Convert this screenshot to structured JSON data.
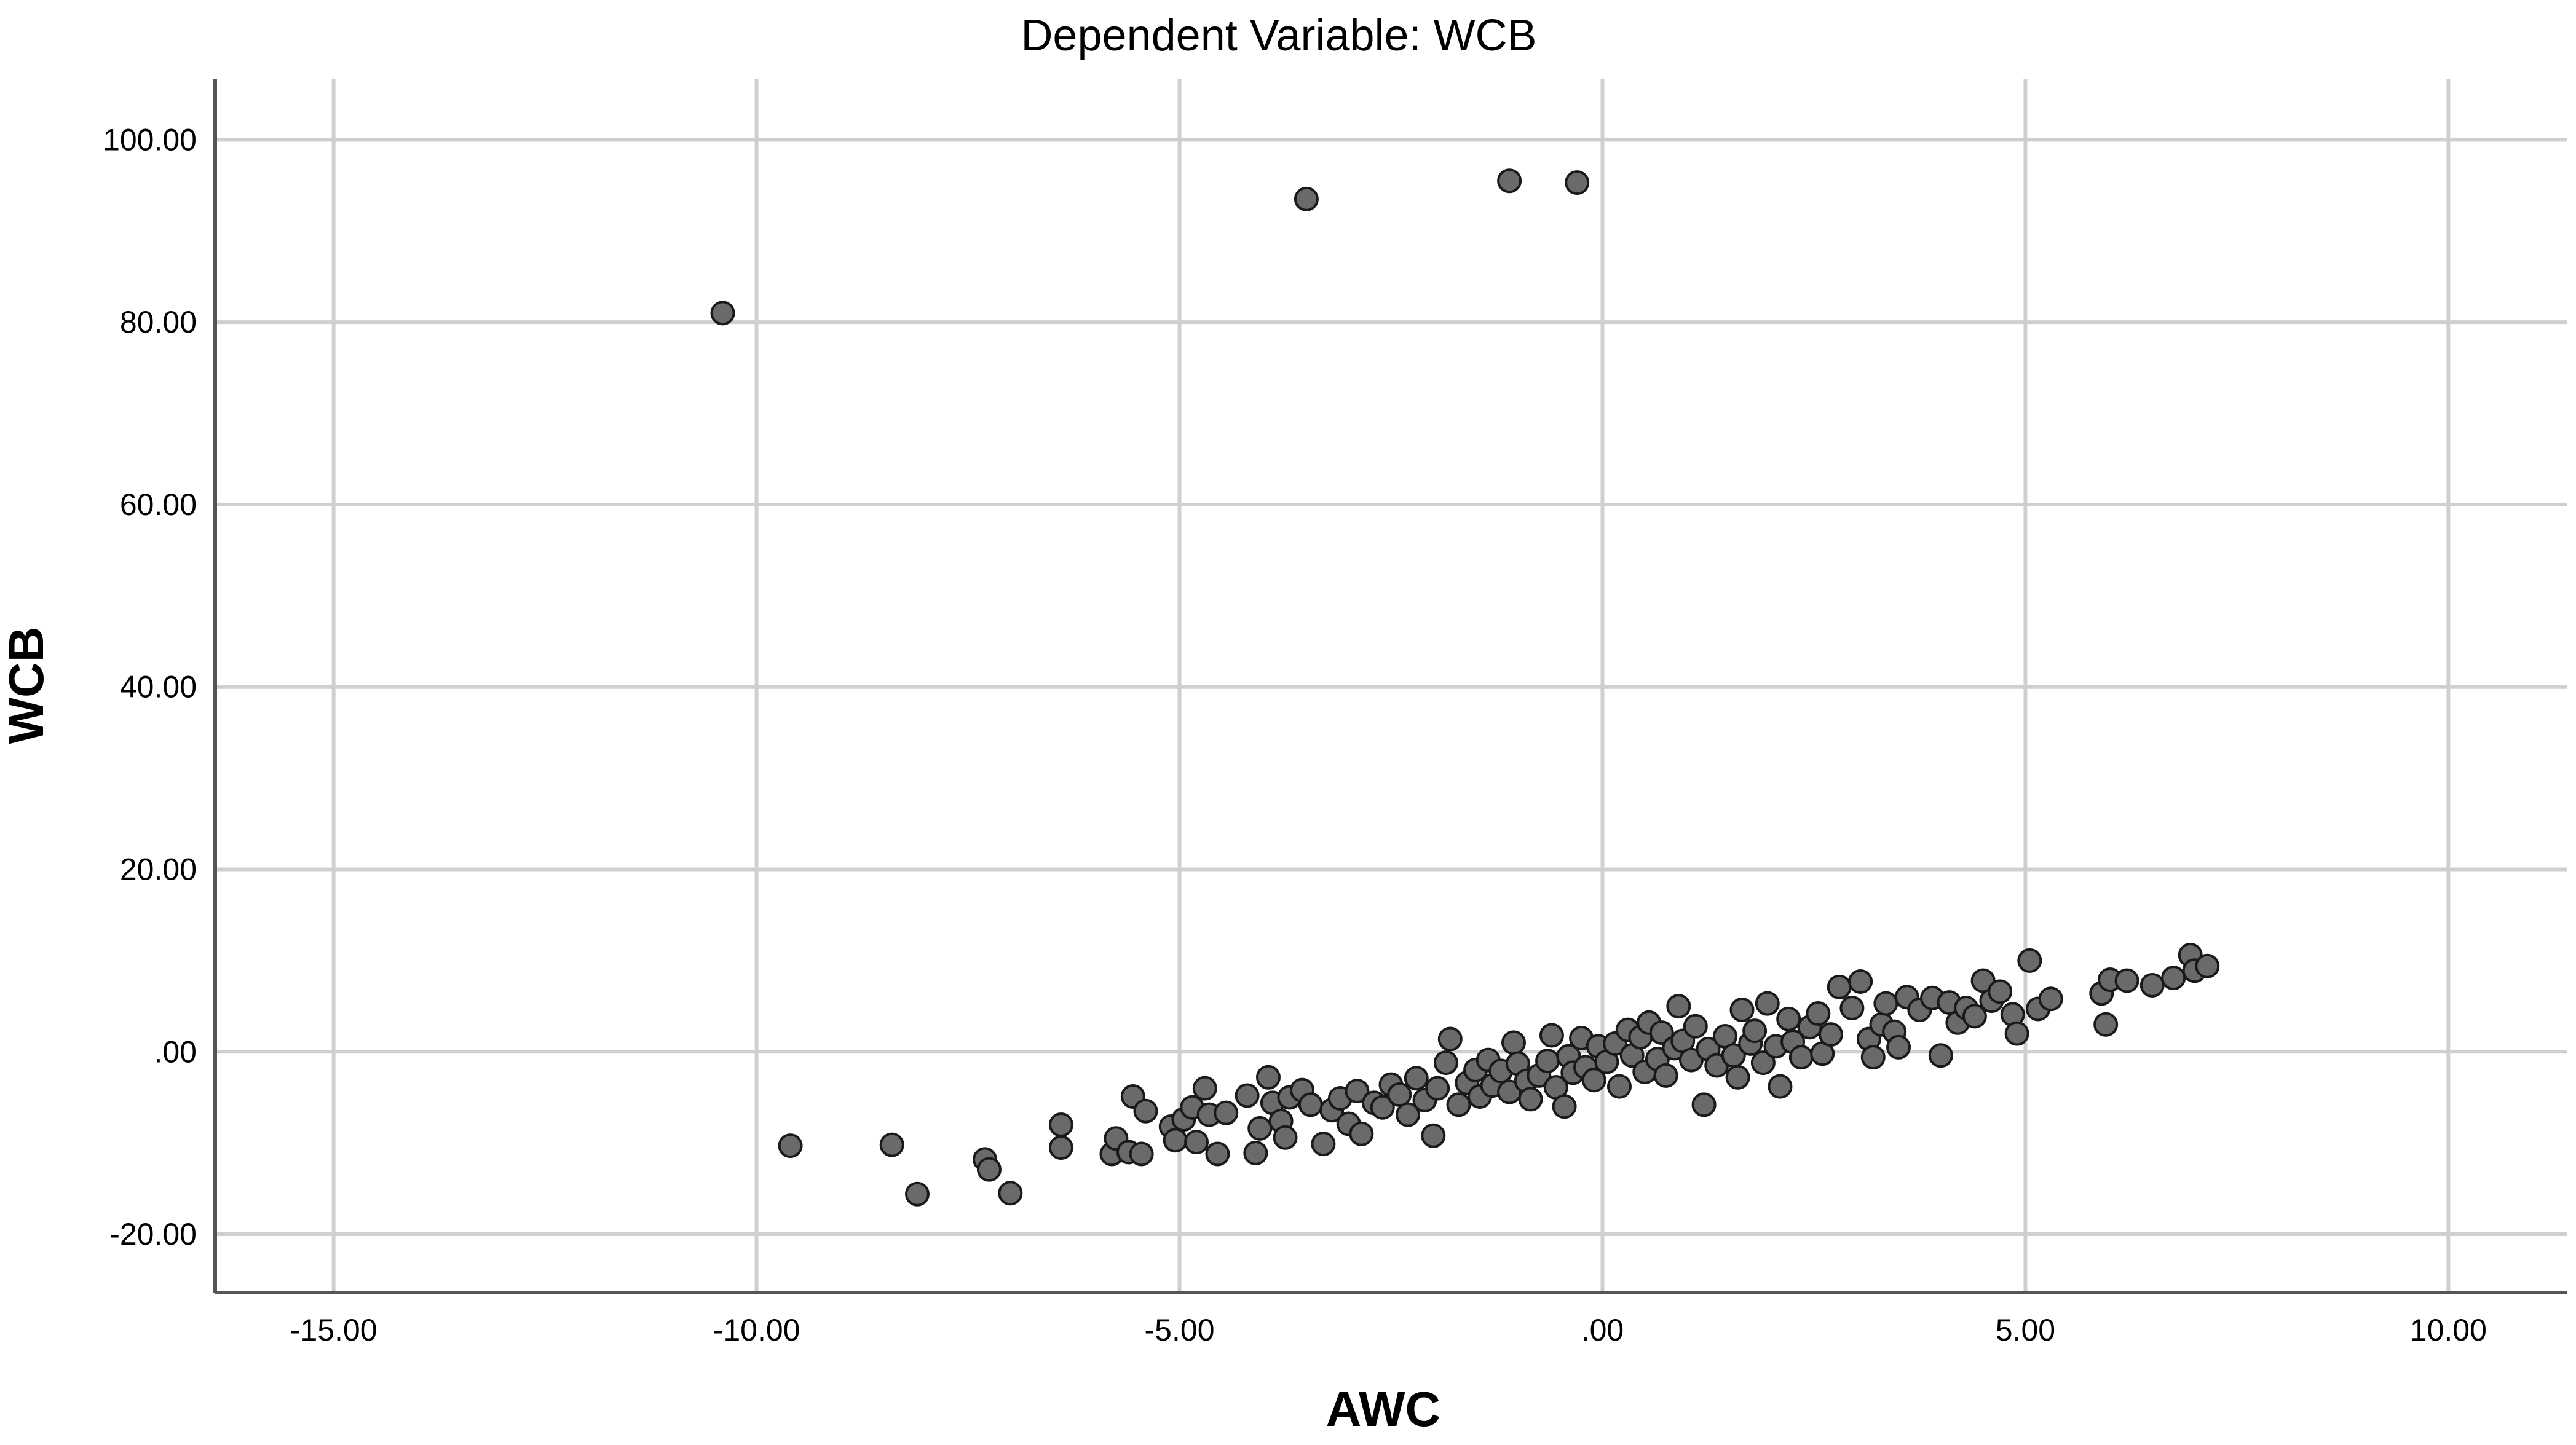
{
  "chart_data": {
    "type": "scatter",
    "title": "Dependent Variable: WCB",
    "xlabel": "AWC",
    "ylabel": "WCB",
    "xlim": [
      -16.4,
      11.4
    ],
    "ylim": [
      -26.4,
      106.7
    ],
    "xticks": [
      -15,
      -10,
      -5,
      0,
      5,
      10
    ],
    "xtick_labels": [
      "-15.00",
      "-10.00",
      "-5.00",
      ".00",
      "5.00",
      "10.00"
    ],
    "yticks": [
      -20,
      0,
      20,
      40,
      60,
      80,
      100
    ],
    "ytick_labels": [
      "-20.00",
      ".00",
      "20.00",
      "40.00",
      "60.00",
      "80.00",
      "100.00"
    ],
    "grid": true,
    "marker_color": "#6a6a6a",
    "marker_edge": "#1a1a1a",
    "points": [
      [
        -10.4,
        81.0
      ],
      [
        -3.5,
        93.5
      ],
      [
        -1.1,
        95.5
      ],
      [
        -0.3,
        95.3
      ],
      [
        -9.6,
        -10.3
      ],
      [
        -8.4,
        -10.2
      ],
      [
        -8.1,
        -15.6
      ],
      [
        -7.3,
        -11.8
      ],
      [
        -7.25,
        -12.9
      ],
      [
        -7.0,
        -15.5
      ],
      [
        -6.4,
        -8.0
      ],
      [
        -6.4,
        -10.5
      ],
      [
        -5.8,
        -11.2
      ],
      [
        -5.75,
        -9.5
      ],
      [
        -5.6,
        -11.0
      ],
      [
        -5.55,
        -4.9
      ],
      [
        -5.45,
        -11.2
      ],
      [
        -5.4,
        -6.5
      ],
      [
        -5.1,
        -8.2
      ],
      [
        -5.05,
        -9.7
      ],
      [
        -4.95,
        -7.4
      ],
      [
        -4.85,
        -6.1
      ],
      [
        -4.8,
        -9.9
      ],
      [
        -4.7,
        -4.0
      ],
      [
        -4.65,
        -6.9
      ],
      [
        -4.55,
        -11.2
      ],
      [
        -4.45,
        -6.7
      ],
      [
        -4.2,
        -4.8
      ],
      [
        -4.1,
        -11.1
      ],
      [
        -4.05,
        -8.4
      ],
      [
        -3.95,
        -2.8
      ],
      [
        -3.9,
        -5.6
      ],
      [
        -3.8,
        -7.6
      ],
      [
        -3.75,
        -9.4
      ],
      [
        -3.7,
        -5.0
      ],
      [
        -3.55,
        -4.2
      ],
      [
        -3.45,
        -5.8
      ],
      [
        -3.3,
        -10.1
      ],
      [
        -3.2,
        -6.4
      ],
      [
        -3.1,
        -5.1
      ],
      [
        -3.0,
        -7.9
      ],
      [
        -2.9,
        -4.3
      ],
      [
        -2.85,
        -9.0
      ],
      [
        -2.7,
        -5.6
      ],
      [
        -2.6,
        -6.1
      ],
      [
        -2.5,
        -3.6
      ],
      [
        -2.4,
        -4.7
      ],
      [
        -2.3,
        -6.9
      ],
      [
        -2.2,
        -2.9
      ],
      [
        -2.1,
        -5.3
      ],
      [
        -2.0,
        -9.2
      ],
      [
        -1.95,
        -4.0
      ],
      [
        -1.85,
        -1.2
      ],
      [
        -1.8,
        1.4
      ],
      [
        -1.7,
        -5.8
      ],
      [
        -1.6,
        -3.4
      ],
      [
        -1.5,
        -2.0
      ],
      [
        -1.45,
        -4.9
      ],
      [
        -1.35,
        -0.9
      ],
      [
        -1.3,
        -3.7
      ],
      [
        -1.2,
        -2.1
      ],
      [
        -1.1,
        -4.4
      ],
      [
        -1.05,
        1.0
      ],
      [
        -1.0,
        -1.3
      ],
      [
        -0.9,
        -3.2
      ],
      [
        -0.85,
        -5.2
      ],
      [
        -0.75,
        -2.6
      ],
      [
        -0.65,
        -1.0
      ],
      [
        -0.6,
        1.8
      ],
      [
        -0.55,
        -3.9
      ],
      [
        -0.45,
        -6.0
      ],
      [
        -0.4,
        -0.5
      ],
      [
        -0.35,
        -2.3
      ],
      [
        -0.25,
        1.5
      ],
      [
        -0.2,
        -1.7
      ],
      [
        -0.1,
        -3.1
      ],
      [
        -0.05,
        0.6
      ],
      [
        0.05,
        -1.1
      ],
      [
        0.15,
        0.9
      ],
      [
        0.2,
        -3.8
      ],
      [
        0.3,
        2.4
      ],
      [
        0.35,
        -0.4
      ],
      [
        0.45,
        1.6
      ],
      [
        0.5,
        -2.2
      ],
      [
        0.55,
        3.2
      ],
      [
        0.65,
        -0.8
      ],
      [
        0.7,
        2.1
      ],
      [
        0.75,
        -2.6
      ],
      [
        0.85,
        0.4
      ],
      [
        0.9,
        5.0
      ],
      [
        0.95,
        1.2
      ],
      [
        1.05,
        -0.9
      ],
      [
        1.1,
        2.8
      ],
      [
        1.2,
        -5.8
      ],
      [
        1.25,
        0.3
      ],
      [
        1.35,
        -1.5
      ],
      [
        1.45,
        1.7
      ],
      [
        1.55,
        -0.4
      ],
      [
        1.6,
        -2.8
      ],
      [
        1.65,
        4.6
      ],
      [
        1.75,
        0.9
      ],
      [
        1.8,
        2.3
      ],
      [
        1.9,
        -1.2
      ],
      [
        1.95,
        5.3
      ],
      [
        2.05,
        0.6
      ],
      [
        2.1,
        -3.8
      ],
      [
        2.2,
        3.6
      ],
      [
        2.25,
        1.1
      ],
      [
        2.35,
        -0.6
      ],
      [
        2.45,
        2.7
      ],
      [
        2.55,
        4.2
      ],
      [
        2.6,
        -0.2
      ],
      [
        2.7,
        1.9
      ],
      [
        2.8,
        7.1
      ],
      [
        2.95,
        4.8
      ],
      [
        3.05,
        7.7
      ],
      [
        3.15,
        1.4
      ],
      [
        3.2,
        -0.6
      ],
      [
        3.3,
        3.0
      ],
      [
        3.35,
        5.3
      ],
      [
        3.45,
        2.2
      ],
      [
        3.5,
        0.5
      ],
      [
        3.6,
        6.0
      ],
      [
        3.75,
        4.6
      ],
      [
        3.9,
        5.9
      ],
      [
        4.0,
        -0.4
      ],
      [
        4.1,
        5.4
      ],
      [
        4.2,
        3.2
      ],
      [
        4.3,
        4.8
      ],
      [
        4.4,
        3.9
      ],
      [
        4.5,
        7.8
      ],
      [
        4.6,
        5.6
      ],
      [
        4.7,
        6.6
      ],
      [
        4.85,
        4.1
      ],
      [
        4.9,
        2.0
      ],
      [
        5.05,
        10.0
      ],
      [
        5.15,
        4.7
      ],
      [
        5.3,
        5.8
      ],
      [
        5.9,
        6.4
      ],
      [
        5.95,
        3.0
      ],
      [
        6.0,
        7.9
      ],
      [
        6.2,
        7.8
      ],
      [
        6.5,
        7.3
      ],
      [
        6.75,
        8.1
      ],
      [
        6.95,
        10.6
      ],
      [
        7.0,
        8.9
      ],
      [
        7.15,
        9.4
      ]
    ]
  }
}
